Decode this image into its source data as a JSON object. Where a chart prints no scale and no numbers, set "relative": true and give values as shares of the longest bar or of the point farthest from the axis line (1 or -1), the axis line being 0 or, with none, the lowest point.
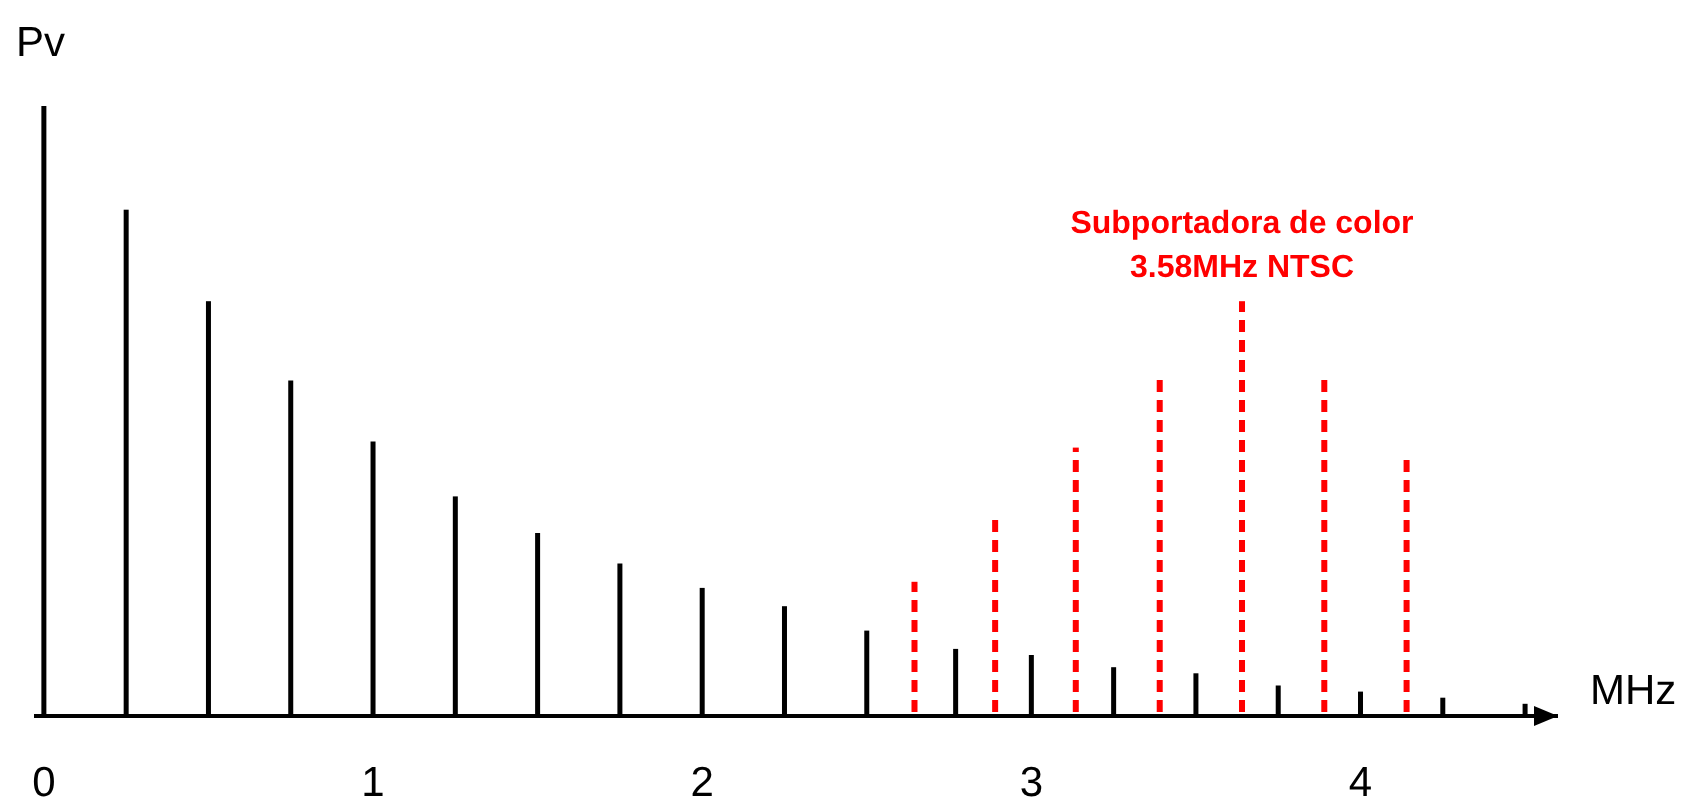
{
  "chart_data": {
    "type": "bar",
    "relative": true,
    "xlabel": "MHz",
    "ylabel": "Pv",
    "xlim": [
      -0.03,
      4.6
    ],
    "xticks": [
      0,
      1,
      2,
      3,
      4
    ],
    "series": [
      {
        "color": "#000000",
        "line_style": "solid",
        "x": [
          0,
          0.25,
          0.5,
          0.75,
          1,
          1.25,
          1.5,
          1.75,
          2,
          2.25,
          2.5,
          2.77,
          3,
          3.25,
          3.5,
          3.75,
          4,
          4.25,
          4.5
        ],
        "values": [
          1,
          0.83,
          0.68,
          0.55,
          0.45,
          0.36,
          0.3,
          0.25,
          0.21,
          0.18,
          0.14,
          0.11,
          0.1,
          0.08,
          0.07,
          0.05,
          0.04,
          0.03,
          0.02
        ]
      },
      {
        "name": "Subportadora de color 3.58MHz NTSC",
        "color": "#ff0000",
        "line_style": "dashed",
        "x": [
          2.645,
          2.89,
          3.135,
          3.39,
          3.64,
          3.89,
          4.14
        ],
        "values": [
          0.22,
          0.33,
          0.44,
          0.56,
          0.68,
          0.56,
          0.43
        ]
      }
    ]
  }
}
